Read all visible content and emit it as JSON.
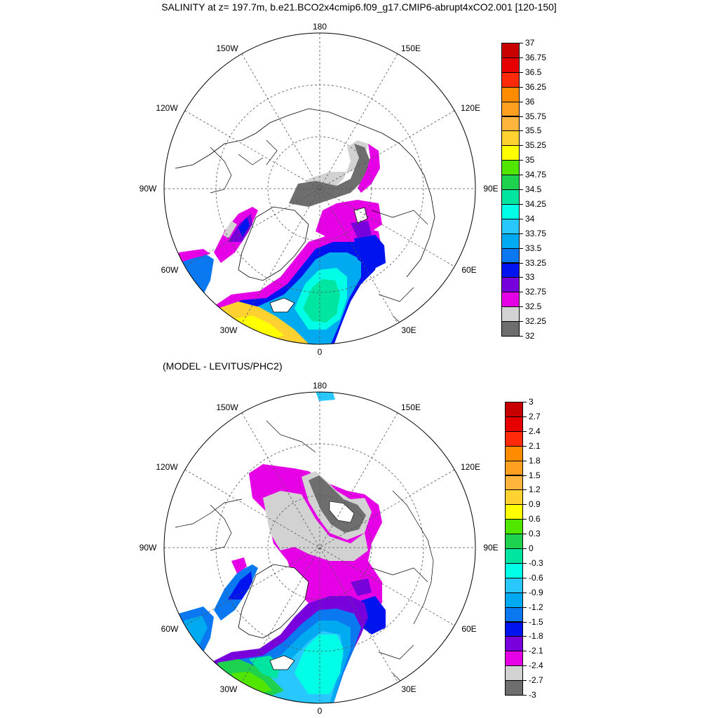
{
  "title": "SALINITY at z= 197.7m, b.e21.BCO2x4cmip6.f09_g17.CMIP6-abrupt4xCO2.001 [120-150]",
  "subtitle": "(MODEL - LEVITUS/PHC2)",
  "longitude_labels": {
    "top": "180",
    "upper_left": "150W",
    "upper_right": "150E",
    "mid_upper_left": "120W",
    "mid_upper_right": "120E",
    "left": "90W",
    "right": "90E",
    "mid_lower_left": "60W",
    "mid_lower_right": "60E",
    "lower_left": "30W",
    "lower_right": "30E",
    "bottom": "0"
  },
  "colorbar_top": {
    "labels": [
      "37",
      "36.75",
      "36.5",
      "36.25",
      "36",
      "35.75",
      "35.5",
      "35.25",
      "35",
      "34.75",
      "34.5",
      "34.25",
      "34",
      "33.75",
      "33.5",
      "33.25",
      "33",
      "32.75",
      "32.5",
      "32.25",
      "32"
    ],
    "colors": [
      "#c80000",
      "#e60000",
      "#ff2a0a",
      "#ff8c00",
      "#ffa020",
      "#ffb43c",
      "#ffd232",
      "#ffff00",
      "#50e600",
      "#1ed250",
      "#00e6a0",
      "#00ffe6",
      "#28c8ff",
      "#00aaf0",
      "#0a78f0",
      "#0014f0",
      "#7800dc",
      "#e600e6",
      "#d2d2d2",
      "#6e6e6e"
    ]
  },
  "colorbar_bottom": {
    "labels": [
      "3",
      "2.7",
      "2.4",
      "2.1",
      "1.8",
      "1.5",
      "1.2",
      "0.9",
      "0.6",
      "0.3",
      "0",
      "-0.3",
      "-0.6",
      "-0.9",
      "-1.2",
      "-1.5",
      "-1.8",
      "-2.1",
      "-2.4",
      "-2.7",
      "-3"
    ],
    "colors": [
      "#c80000",
      "#e60000",
      "#ff2a0a",
      "#ff8c00",
      "#ffa020",
      "#ffb43c",
      "#ffd232",
      "#ffff00",
      "#50e600",
      "#1ed250",
      "#00e6a0",
      "#00ffe6",
      "#28c8ff",
      "#00aaf0",
      "#0a78f0",
      "#0014f0",
      "#7800dc",
      "#e600e6",
      "#d2d2d2",
      "#6e6e6e"
    ]
  }
}
